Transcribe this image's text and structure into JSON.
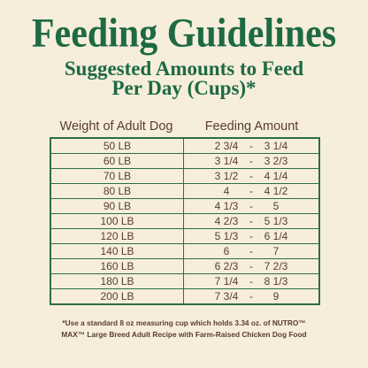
{
  "colors": {
    "background": "#F6EEDB",
    "title": "#1E6A42",
    "text": "#5A3B33",
    "border": "#2E6D48"
  },
  "title": "Feeding Guidelines",
  "subtitle_lines": [
    "Suggested Amounts to Feed",
    "Per Day (Cups)*"
  ],
  "table": {
    "headers": {
      "weight": "Weight of Adult Dog",
      "amount": "Feeding Amount"
    },
    "separator": "-",
    "rows": [
      {
        "weight": "50 LB",
        "low": "2 3/4",
        "high": "3 1/4"
      },
      {
        "weight": "60 LB",
        "low": "3 1/4",
        "high": "3 2/3"
      },
      {
        "weight": "70 LB",
        "low": "3 1/2",
        "high": "4 1/4"
      },
      {
        "weight": "80 LB",
        "low": "4",
        "high": "4 1/2"
      },
      {
        "weight": "90 LB",
        "low": "4 1/3",
        "high": "5"
      },
      {
        "weight": "100 LB",
        "low": "4 2/3",
        "high": "5 1/3"
      },
      {
        "weight": "120 LB",
        "low": "5 1/3",
        "high": "6 1/4"
      },
      {
        "weight": "140 LB",
        "low": "6",
        "high": "7"
      },
      {
        "weight": "160 LB",
        "low": "6 2/3",
        "high": "7 2/3"
      },
      {
        "weight": "180 LB",
        "low": "7 1/4",
        "high": "8 1/3"
      },
      {
        "weight": "200 LB",
        "low": "7 3/4",
        "high": "9"
      }
    ]
  },
  "footnote_lines": [
    "*Use a standard 8 oz measuring cup which holds 3.34 oz. of NUTRO™",
    "MAX™ Large Breed Adult Recipe with Farm-Raised Chicken Dog Food"
  ]
}
